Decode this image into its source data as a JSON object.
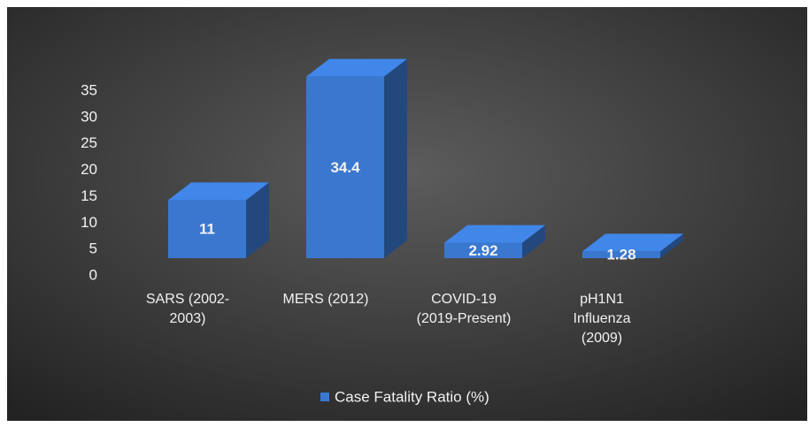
{
  "chart_data": {
    "type": "bar",
    "categories": [
      "SARS (2002-\n2003)",
      "MERS (2012)",
      "COVID-19\n(2019-Present)",
      "pH1N1\nInfluenza\n(2009)"
    ],
    "series": [
      {
        "name": "Case Fatality Ratio (%)",
        "color": "#3a78d0",
        "values": [
          11,
          34.4,
          2.92,
          1.28
        ]
      }
    ],
    "ylim": [
      0,
      35
    ],
    "yticks": [
      0,
      5,
      10,
      15,
      20,
      25,
      30,
      35
    ],
    "legend": "bottom",
    "grid": false
  }
}
